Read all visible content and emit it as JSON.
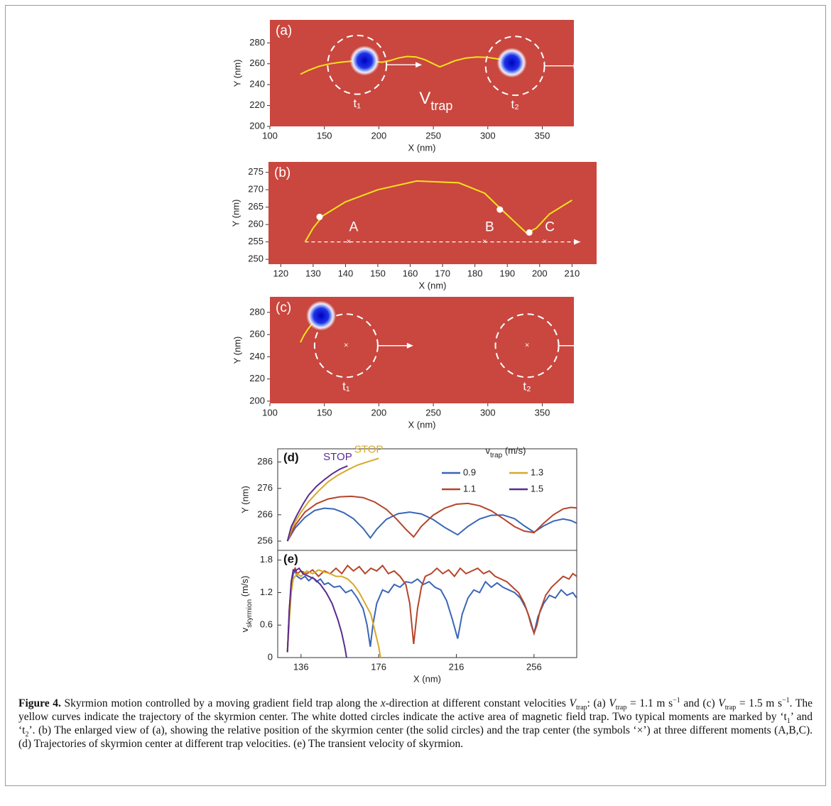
{
  "chart_data": [
    {
      "type": "trap",
      "panel_label": "(a)",
      "x_label": "X (nm)",
      "y_label": "Y (nm)",
      "xlim": [
        100,
        379
      ],
      "ylim": [
        200,
        302
      ],
      "xticks": [
        100,
        150,
        200,
        250,
        300,
        350
      ],
      "yticks": [
        200,
        220,
        240,
        260,
        280
      ],
      "background": "#c9473f",
      "trajectory": {
        "color": "#f5e21b",
        "x": [
          128,
          135,
          145,
          155,
          165,
          175,
          187,
          195,
          203,
          210,
          218,
          226,
          234,
          242,
          250,
          256,
          262,
          270,
          280,
          290,
          300,
          310,
          318,
          322
        ],
        "y": [
          250,
          253.5,
          257.5,
          260,
          261.5,
          262.5,
          263,
          262,
          261.5,
          263,
          265.5,
          267,
          266.5,
          264,
          260,
          257,
          259.5,
          263,
          265.5,
          266.5,
          266,
          264.5,
          262.5,
          261
        ]
      },
      "skyrmions": {
        "x": [
          187,
          322
        ],
        "y": [
          263,
          261
        ]
      },
      "traps": {
        "x": [
          180,
          325
        ],
        "y": [
          259,
          258
        ],
        "r": [
          27,
          27
        ],
        "labels": [
          "t₁",
          "t₂"
        ],
        "cross": false
      },
      "annotation": {
        "text": "V",
        "sub": "trap"
      }
    },
    {
      "type": "trap",
      "panel_label": "(b)",
      "x_label": "X (nm)",
      "y_label": "Y (nm)",
      "xlim": [
        116.2,
        217.6
      ],
      "ylim": [
        248.6,
        278
      ],
      "xticks": [
        120,
        130,
        140,
        150,
        160,
        170,
        180,
        190,
        200,
        210
      ],
      "yticks": [
        250,
        255,
        260,
        265,
        270,
        275
      ],
      "background": "#c9473f",
      "trajectory": {
        "color": "#f5e21b",
        "x": [
          127.5,
          130,
          133,
          140,
          150,
          162,
          175,
          183,
          188,
          192,
          196,
          199,
          203,
          210
        ],
        "y": [
          255,
          259,
          262.5,
          266.5,
          270,
          272.5,
          272,
          269,
          264.5,
          261,
          257.5,
          259,
          263,
          267
        ]
      },
      "markers": {
        "x": [
          132,
          187.7,
          196.8
        ],
        "y": [
          262.2,
          264.3,
          257.7
        ]
      },
      "traps": {
        "x": [
          141,
          183,
          201.6
        ],
        "y": [
          255,
          255,
          255
        ],
        "labels": [
          "A",
          "B",
          "C"
        ],
        "cross": true
      }
    },
    {
      "type": "trap",
      "panel_label": "(c)",
      "x_label": "X (nm)",
      "y_label": "Y (nm)",
      "xlim": [
        100,
        379
      ],
      "ylim": [
        198,
        294
      ],
      "xticks": [
        100,
        150,
        200,
        250,
        300,
        350
      ],
      "yticks": [
        200,
        220,
        240,
        260,
        280
      ],
      "background": "#c9473f",
      "trajectory": {
        "color": "#f5e21b",
        "x": [
          128,
          131,
          135,
          139,
          143,
          147
        ],
        "y": [
          253,
          259,
          265,
          270,
          274,
          277
        ]
      },
      "skyrmions": {
        "x": [
          147
        ],
        "y": [
          277
        ]
      },
      "traps": {
        "x": [
          170,
          336
        ],
        "y": [
          250,
          250
        ],
        "r": [
          29,
          29
        ],
        "labels": [
          "t₁",
          "t₂"
        ],
        "cross": true
      }
    },
    {
      "type": "line",
      "panel_label": "(d)",
      "y_label": "Y (nm)",
      "xlim": [
        124,
        278
      ],
      "ylim": [
        252.5,
        291
      ],
      "yticks": [
        256,
        266,
        276,
        286
      ],
      "legend": "upper right",
      "legend_title": {
        "text": "v",
        "sub": "trap",
        "unit": " (m/s)"
      },
      "series": [
        {
          "name": "0.9",
          "color": "#3a66b8",
          "x": [
            129,
            133,
            138,
            143,
            148,
            153,
            158,
            163,
            168,
            171.7,
            175,
            180,
            186,
            192,
            198,
            204,
            210,
            216.7,
            222,
            228,
            234,
            240,
            246,
            251,
            256,
            261,
            266,
            271,
            275,
            278
          ],
          "values": [
            256,
            261,
            265,
            267.6,
            268.5,
            268.2,
            266.8,
            264.5,
            260.8,
            257.2,
            260.5,
            264.3,
            266.4,
            267,
            266.3,
            264.2,
            261.2,
            258.4,
            261.6,
            264.4,
            265.8,
            265.9,
            264.5,
            261.8,
            259.4,
            261.8,
            263.6,
            264.4,
            263.8,
            262.8
          ]
        },
        {
          "name": "1.1",
          "color": "#b5452a",
          "x": [
            129,
            133,
            138,
            144,
            150,
            156,
            162,
            168,
            174,
            180,
            185,
            190,
            194,
            198,
            204,
            210,
            216,
            222,
            228,
            234,
            240,
            246,
            251,
            256,
            261,
            266,
            271,
            275,
            278
          ],
          "values": [
            256,
            262,
            267,
            270.2,
            272,
            272.8,
            273,
            272.5,
            270.8,
            268,
            264.5,
            260.5,
            257.6,
            261.6,
            265.8,
            268.5,
            270,
            270.3,
            269.4,
            267.5,
            264.6,
            261.5,
            259.8,
            259.2,
            262.8,
            266,
            268.2,
            268.8,
            268.6
          ]
        },
        {
          "name": "1.3",
          "color": "#d7a92a",
          "end_label": "STOP",
          "x": [
            129,
            132,
            136,
            140,
            145,
            150,
            155,
            160,
            165,
            170,
            176
          ],
          "values": [
            256,
            262,
            267,
            271,
            275,
            278.5,
            281,
            283,
            284.8,
            286,
            287.4
          ]
        },
        {
          "name": "1.5",
          "color": "#5a2b8f",
          "end_label": "STOP",
          "x": [
            129,
            131,
            134,
            137,
            140,
            144,
            148,
            152,
            156,
            160
          ],
          "values": [
            256,
            261.5,
            266,
            270,
            273.5,
            276.8,
            279.3,
            281.5,
            283.3,
            284.5
          ]
        }
      ]
    },
    {
      "type": "line",
      "panel_label": "(e)",
      "x_label": "X (nm)",
      "y_label": {
        "text": "v",
        "sub": "skyrmion",
        "unit": " (m/s)"
      },
      "xlim": [
        124,
        278
      ],
      "ylim": [
        0,
        1.98
      ],
      "xticks": [
        136,
        176,
        216,
        256
      ],
      "yticks": [
        0,
        0.6,
        1.2,
        1.8
      ],
      "series": [
        {
          "color": "#3a66b8",
          "x": [
            129,
            130,
            131,
            132,
            133,
            134,
            136,
            138,
            140,
            142,
            144,
            146,
            148,
            150,
            153,
            156,
            159,
            162,
            165,
            168,
            170,
            171.7,
            173,
            175,
            178,
            181,
            184,
            187,
            190,
            193,
            196,
            199,
            202,
            205,
            208,
            211,
            214,
            216.7,
            219,
            222,
            225,
            228,
            231,
            234,
            237,
            240,
            243,
            246,
            249,
            252,
            254,
            256,
            258,
            261,
            264,
            267,
            270,
            273,
            276,
            278
          ],
          "values": [
            0.1,
            0.8,
            1.3,
            1.55,
            1.6,
            1.5,
            1.45,
            1.5,
            1.42,
            1.48,
            1.4,
            1.45,
            1.35,
            1.38,
            1.3,
            1.32,
            1.2,
            1.25,
            1.1,
            0.9,
            0.6,
            0.2,
            0.6,
            1.0,
            1.25,
            1.2,
            1.35,
            1.3,
            1.4,
            1.38,
            1.45,
            1.35,
            1.4,
            1.3,
            1.25,
            1.05,
            0.7,
            0.35,
            0.8,
            1.1,
            1.25,
            1.2,
            1.4,
            1.3,
            1.38,
            1.3,
            1.25,
            1.2,
            1.1,
            0.9,
            0.7,
            0.45,
            0.75,
            1.0,
            1.15,
            1.1,
            1.25,
            1.15,
            1.2,
            1.1
          ]
        },
        {
          "color": "#b5452a",
          "x": [
            129,
            130,
            131,
            132,
            133,
            134,
            136,
            139,
            142,
            145,
            148,
            151,
            154,
            157,
            160,
            163,
            166,
            169,
            172,
            175,
            178,
            181,
            184,
            187,
            190,
            192,
            194,
            196,
            198,
            200,
            203,
            206,
            209,
            212,
            215,
            218,
            221,
            224,
            227,
            230,
            233,
            236,
            239,
            242,
            245,
            248,
            251,
            253,
            254.5,
            256,
            257.5,
            259,
            262,
            265,
            268,
            271,
            274,
            276,
            278
          ],
          "values": [
            0.1,
            0.9,
            1.4,
            1.6,
            1.65,
            1.55,
            1.6,
            1.55,
            1.62,
            1.5,
            1.6,
            1.55,
            1.65,
            1.55,
            1.7,
            1.6,
            1.68,
            1.55,
            1.65,
            1.6,
            1.7,
            1.55,
            1.6,
            1.5,
            1.35,
            1.0,
            0.25,
            0.9,
            1.3,
            1.5,
            1.55,
            1.65,
            1.55,
            1.62,
            1.5,
            1.65,
            1.55,
            1.6,
            1.65,
            1.55,
            1.6,
            1.5,
            1.45,
            1.4,
            1.3,
            1.2,
            1.0,
            0.8,
            0.6,
            0.45,
            0.6,
            0.85,
            1.15,
            1.3,
            1.4,
            1.5,
            1.45,
            1.55,
            1.5
          ]
        },
        {
          "color": "#d7a92a",
          "x": [
            129,
            130,
            131,
            132,
            134,
            136,
            139,
            142,
            145,
            148,
            151,
            154,
            157,
            160,
            163,
            166,
            169,
            172,
            174,
            176,
            177
          ],
          "values": [
            0.1,
            0.7,
            1.2,
            1.45,
            1.55,
            1.5,
            1.6,
            1.55,
            1.62,
            1.58,
            1.55,
            1.5,
            1.5,
            1.45,
            1.35,
            1.2,
            1.0,
            0.8,
            0.5,
            0.2,
            0
          ]
        },
        {
          "color": "#5a2b8f",
          "x": [
            129,
            130,
            131,
            132,
            133,
            135,
            137,
            140,
            143,
            146,
            149,
            152,
            155,
            157,
            158.5,
            159.5
          ],
          "values": [
            0.1,
            0.9,
            1.4,
            1.62,
            1.6,
            1.65,
            1.55,
            1.5,
            1.45,
            1.35,
            1.2,
            1.0,
            0.7,
            0.45,
            0.2,
            0
          ]
        }
      ]
    }
  ],
  "caption": {
    "label": "Figure 4.",
    "text": [
      "Skyrmion motion controlled by a moving gradient field trap along the ",
      "x",
      "-direction at different constant velocities ",
      "V",
      "trap",
      ": (a) ",
      "V",
      "trap",
      " = 1.1 m s",
      "−1",
      " and (c) ",
      "V",
      "trap",
      " = 1.5 m s",
      "−1",
      ". The yellow curves indicate the trajectory of the skyrmion center. The white dotted circles indicate the active area of magnetic field trap. Two typical moments are marked by ‘t",
      "1",
      "’ and ‘t",
      "2",
      "’. (b) The enlarged view of (a), showing the relative position of the skyrmion center (the solid circles) and the trap center (the symbols ‘×’) at three different moments (A,B,C). (d) Trajectories of skyrmion center at different trap velocities. (e) The transient velocity of skyrmion."
    ]
  }
}
